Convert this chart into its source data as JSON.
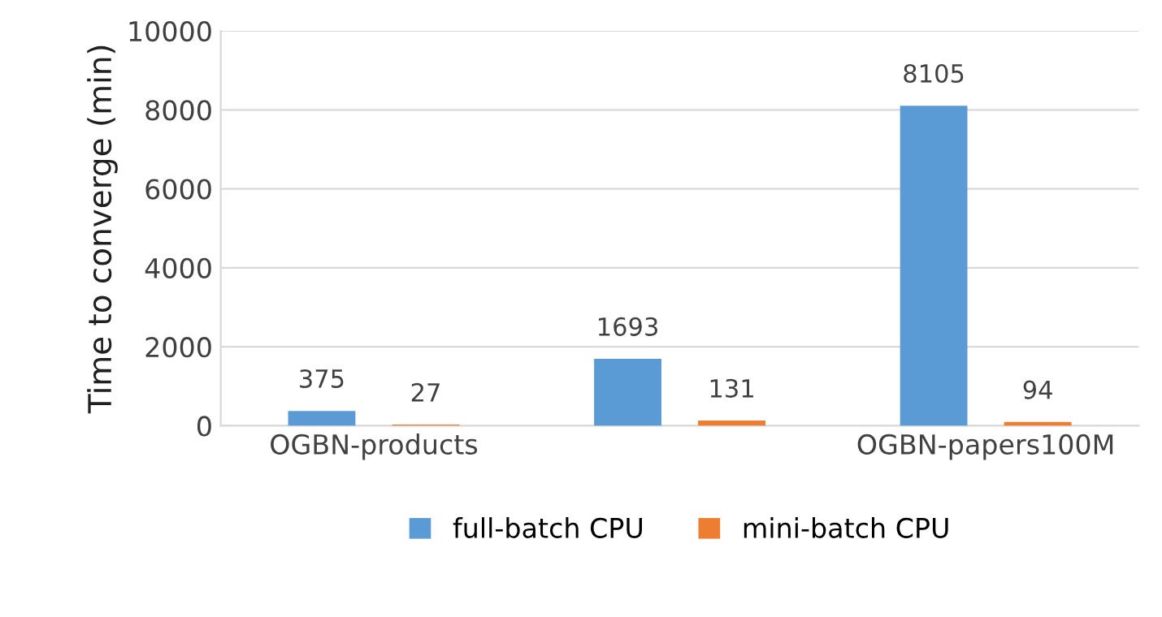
{
  "chart_data": {
    "type": "bar",
    "ylabel": "Time to converge (min)",
    "categories": [
      "OGBN-products",
      null,
      "OGBN-papers100M"
    ],
    "series": [
      {
        "name": "full-batch CPU",
        "color": "#5b9bd5",
        "values": [
          375,
          1693,
          8105
        ]
      },
      {
        "name": "mini-batch CPU",
        "color": "#ed7d31",
        "values": [
          27,
          131,
          94
        ]
      }
    ],
    "ylim": [
      0,
      10000
    ],
    "yticks": [
      0,
      2000,
      4000,
      6000,
      8000,
      10000
    ],
    "grid": "y",
    "legend": "bottom",
    "data_labels": true
  }
}
